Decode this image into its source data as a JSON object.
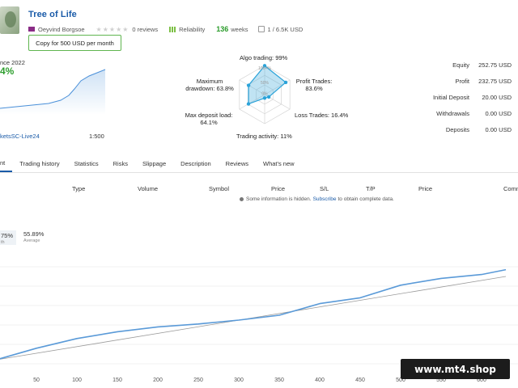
{
  "header": {
    "title": "Tree of Life",
    "author": "Oeyvind Borgsoe",
    "reviews": "0 reviews",
    "reliability": "Reliability",
    "weeks_num": "136",
    "weeks_lbl": "weeks",
    "copies": "1 / 6.5K USD",
    "copy_button": "Copy for 500 USD per month"
  },
  "left": {
    "since": "nce 2022",
    "percent": "4%",
    "account": "ketsSC-Live24",
    "leverage": "1:500"
  },
  "radar": {
    "algo": "Algo trading: 99%",
    "maxdd": "Maximum drawdown: 63.8%",
    "profit": "Profit Trades: 83.6%",
    "deposit": "Max deposit load: 64.1%",
    "loss": "Loss Trades: 16.4%",
    "activity": "Trading activity: 11%",
    "ring100": "100+%",
    "ring50": "50%",
    "ring0": "0%",
    "values": [
      0.99,
      0.836,
      0.164,
      0.11,
      0.641,
      0.638
    ]
  },
  "stats": [
    {
      "label": "Equity",
      "value": "252.75 USD"
    },
    {
      "label": "Profit",
      "value": "232.75 USD"
    },
    {
      "label": "Initial Deposit",
      "value": "20.00 USD"
    },
    {
      "label": "Withdrawals",
      "value": "0.00 USD"
    },
    {
      "label": "Deposits",
      "value": "0.00 USD"
    }
  ],
  "tabs": [
    "nt",
    "Trading history",
    "Statistics",
    "Risks",
    "Slippage",
    "Description",
    "Reviews",
    "What's new"
  ],
  "table": {
    "type": "Type",
    "volume": "Volume",
    "symbol": "Symbol",
    "price": "Price",
    "sl": "S/L",
    "tp": "T/P",
    "price2": "Price",
    "comm": "Comm",
    "note_pre": "Some information is hidden.",
    "note_link": "Subscribe",
    "note_post": "to obtain complete data."
  },
  "growth": {
    "value1": "75%",
    "label1": "th",
    "value2": "55.89%",
    "label2": "Average"
  },
  "chart_data": {
    "type": "line",
    "x_ticks": [
      "50",
      "100",
      "150",
      "200",
      "250",
      "300",
      "350",
      "400",
      "450",
      "500",
      "550",
      "600"
    ],
    "series": [
      {
        "x": [
          0,
          50,
          100,
          150,
          200,
          250,
          300,
          350,
          400,
          450,
          500,
          550,
          600,
          630
        ],
        "y": [
          0.04,
          0.16,
          0.26,
          0.33,
          0.38,
          0.41,
          0.45,
          0.5,
          0.62,
          0.68,
          0.81,
          0.88,
          0.92,
          0.97
        ]
      },
      {
        "x": [
          0,
          630
        ],
        "y": [
          0.04,
          0.9
        ]
      }
    ]
  },
  "watermark": "www.mt4.shop"
}
